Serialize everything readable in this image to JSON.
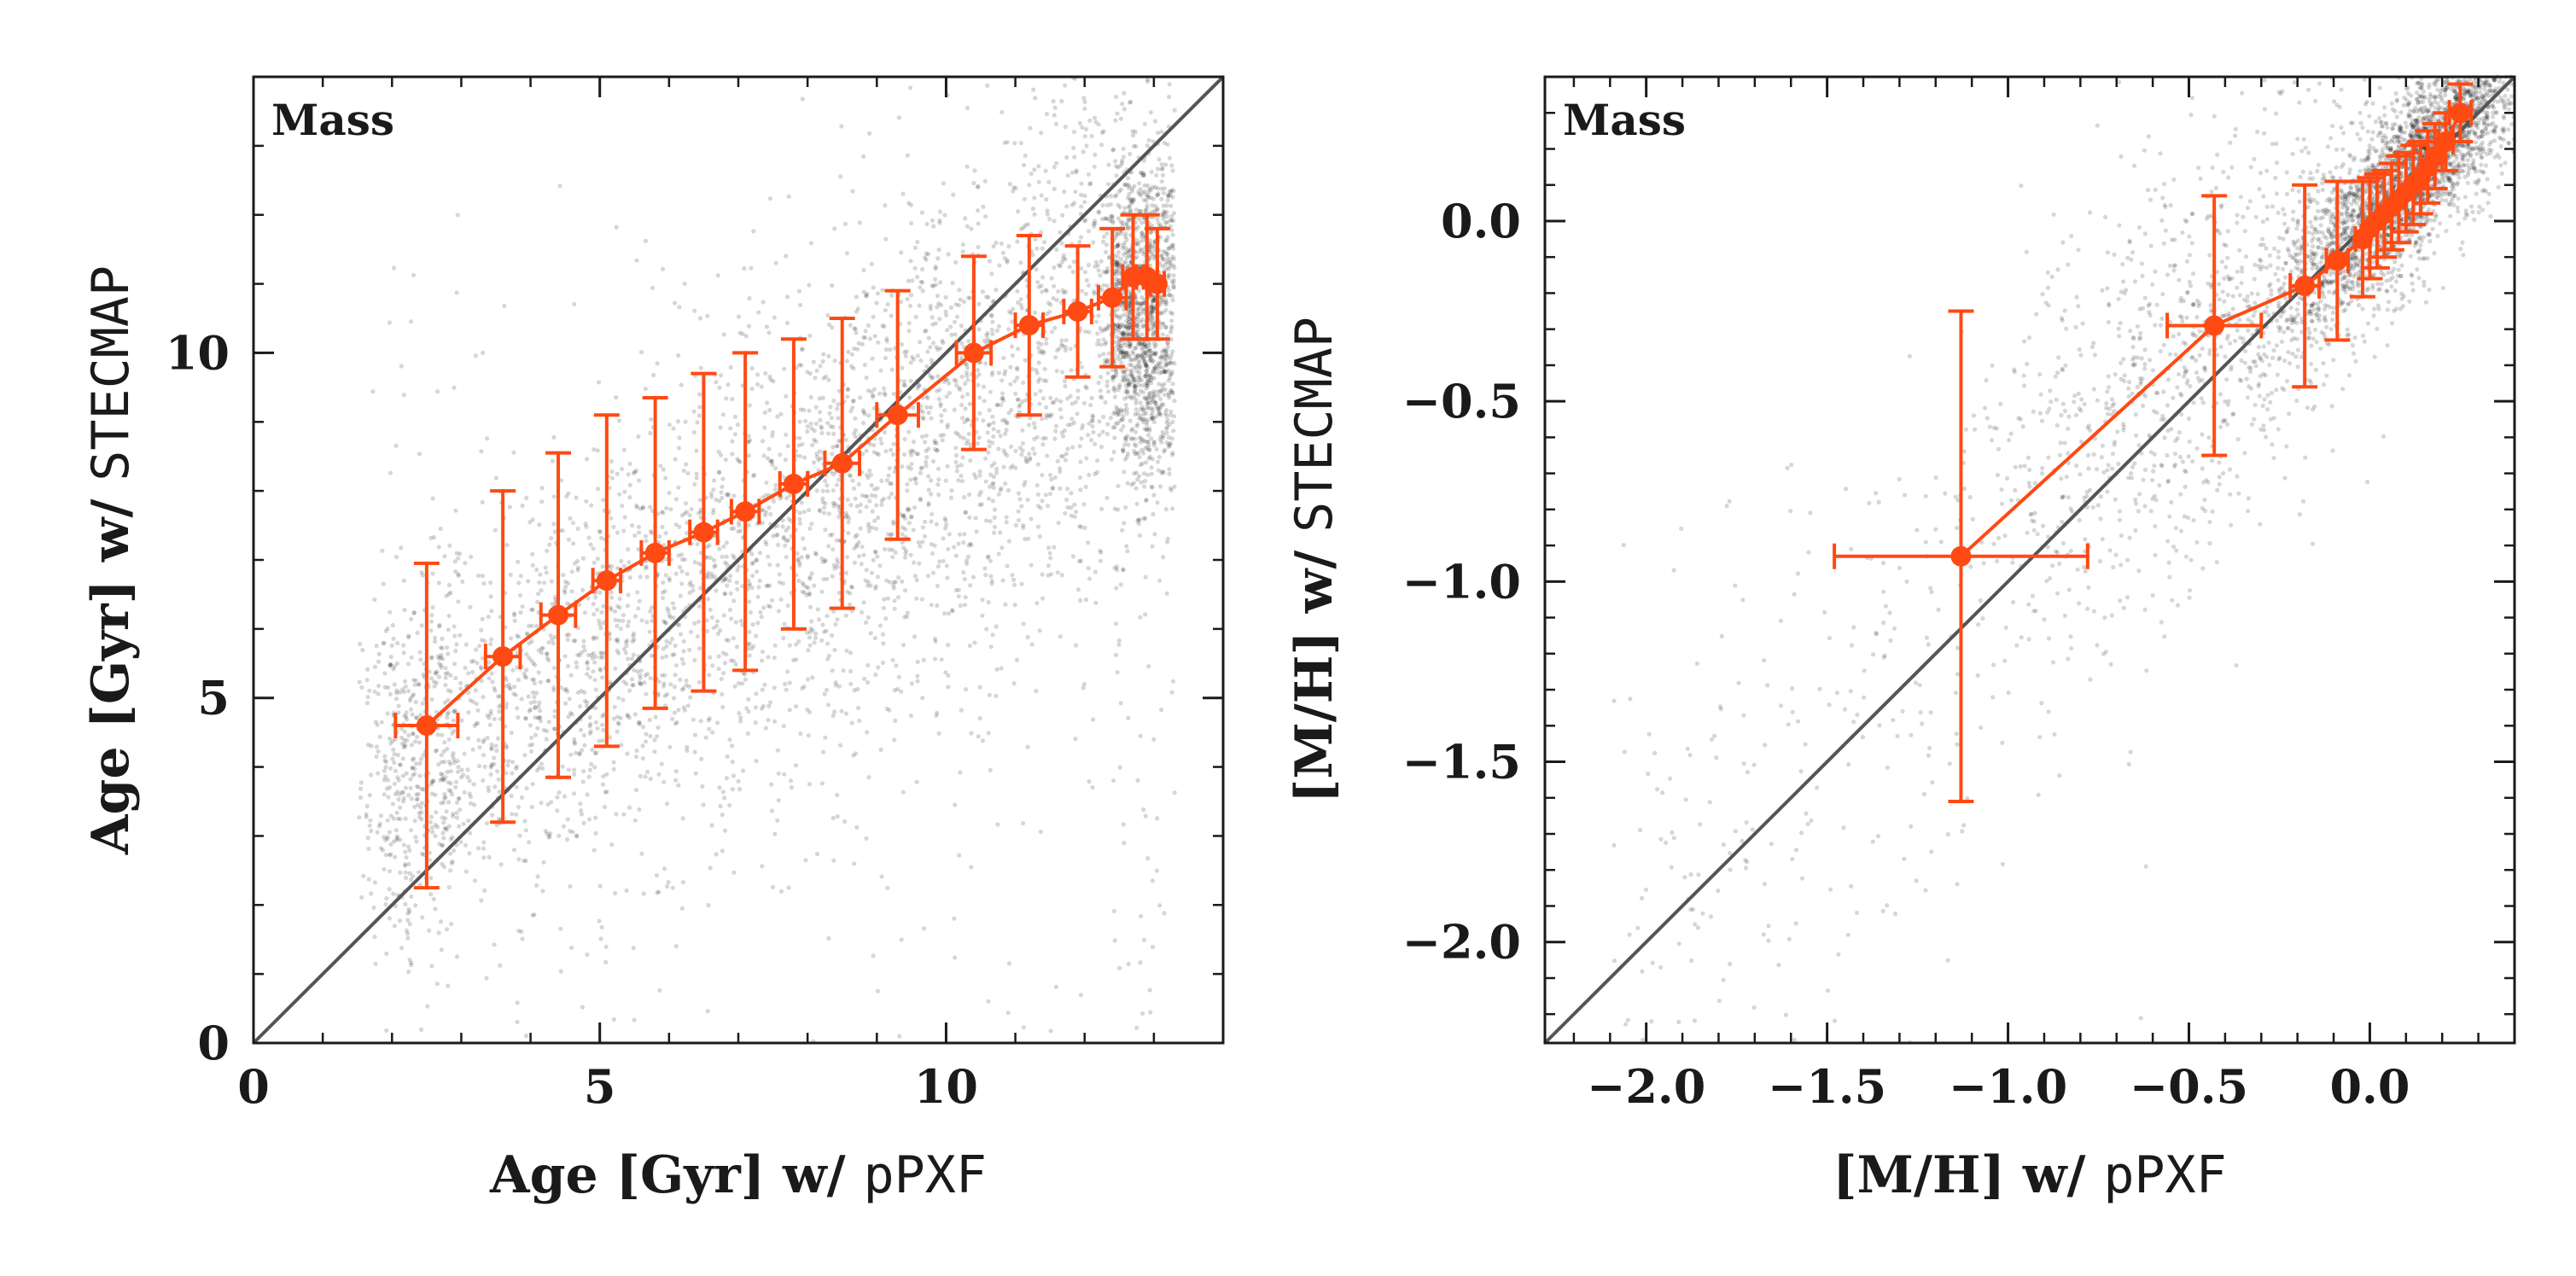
{
  "colors": {
    "scatter": "#000000",
    "binned": "#ff4a13",
    "one_to_one": "#555555",
    "frame": "#1a1a1a"
  },
  "chart_data": [
    {
      "type": "scatter",
      "panel_label": "Mass",
      "xlabel_main": "Age [Gyr] w/ ",
      "xlabel_code": "pPXF",
      "ylabel_main": "Age [Gyr] w/ ",
      "ylabel_code": "STECMAP",
      "xlim": [
        0,
        14
      ],
      "ylim": [
        0,
        14
      ],
      "xticks": [
        0,
        5,
        10
      ],
      "xtick_labels": [
        "0",
        "5",
        "10"
      ],
      "yticks": [
        0,
        5,
        10
      ],
      "ytick_labels": [
        "0",
        "5",
        "10"
      ],
      "minor_step": 1,
      "one_to_one_line": true,
      "scatter_description": "dense cloud of points",
      "binned_series": {
        "x": [
          2.5,
          3.6,
          4.4,
          5.1,
          5.8,
          6.5,
          7.1,
          7.8,
          8.5,
          9.3,
          10.4,
          11.2,
          11.9,
          12.4,
          12.7,
          12.9,
          13.05
        ],
        "y": [
          4.6,
          5.6,
          6.2,
          6.7,
          7.1,
          7.4,
          7.7,
          8.1,
          8.4,
          9.1,
          10.0,
          10.4,
          10.6,
          10.8,
          11.1,
          11.1,
          11.0
        ],
        "xerr": [
          0.45,
          0.25,
          0.25,
          0.2,
          0.2,
          0.2,
          0.2,
          0.2,
          0.25,
          0.3,
          0.25,
          0.2,
          0.2,
          0.2,
          0.15,
          0.15,
          0.1
        ],
        "yerr": [
          2.35,
          2.4,
          2.35,
          2.4,
          2.25,
          2.3,
          2.3,
          2.1,
          2.1,
          1.8,
          1.4,
          1.3,
          0.95,
          1.0,
          0.9,
          0.9,
          0.8
        ]
      }
    },
    {
      "type": "scatter",
      "panel_label": "Mass",
      "xlabel_main": "[M/H] w/ ",
      "xlabel_code": "pPXF",
      "ylabel_main": "[M/H] w/ ",
      "ylabel_code": "STECMAP",
      "xlim": [
        -2.28,
        0.4
      ],
      "ylim": [
        -2.28,
        0.4
      ],
      "xticks": [
        -2.0,
        -1.5,
        -1.0,
        -0.5,
        0.0
      ],
      "xtick_labels": [
        "−2.0",
        "−1.5",
        "−1.0",
        "−0.5",
        "0.0"
      ],
      "yticks": [
        -2.0,
        -1.5,
        -1.0,
        -0.5,
        0.0
      ],
      "ytick_labels": [
        "−2.0",
        "−1.5",
        "−1.0",
        "−0.5",
        "0.0"
      ],
      "minor_step": 0.1,
      "one_to_one_line": true,
      "scatter_description": "sparse points with dense concentration near top-right",
      "binned_series": {
        "x": [
          -1.13,
          -0.43,
          -0.18,
          -0.09,
          -0.02,
          0.0,
          0.02,
          0.04,
          0.06,
          0.08,
          0.1,
          0.12,
          0.14,
          0.16,
          0.18,
          0.21,
          0.25
        ],
        "y": [
          -0.93,
          -0.29,
          -0.18,
          -0.11,
          -0.05,
          -0.02,
          0.0,
          0.02,
          0.04,
          0.06,
          0.08,
          0.1,
          0.12,
          0.15,
          0.18,
          0.22,
          0.3
        ],
        "xerr": [
          0.35,
          0.13,
          0.04,
          0.03,
          0.02,
          0.02,
          0.02,
          0.02,
          0.02,
          0.02,
          0.02,
          0.02,
          0.02,
          0.02,
          0.02,
          0.02,
          0.03
        ],
        "yerr": [
          0.68,
          0.36,
          0.28,
          0.22,
          0.16,
          0.14,
          0.13,
          0.12,
          0.12,
          0.12,
          0.11,
          0.11,
          0.1,
          0.1,
          0.09,
          0.08,
          0.08
        ]
      }
    }
  ]
}
